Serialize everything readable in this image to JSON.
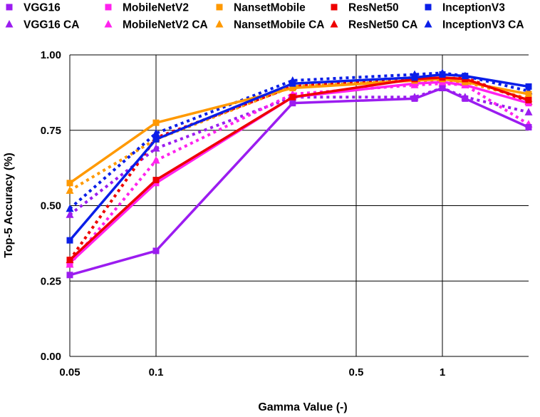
{
  "chart_data": {
    "type": "line",
    "xscale": "log",
    "xlabel": "Gamma Value (-)",
    "ylabel": "Top-5 Accuracy  (%)",
    "ylim": [
      0,
      1
    ],
    "xlim": [
      0.05,
      2
    ],
    "legend_position": "top",
    "grid": true,
    "x": [
      0.05,
      0.1,
      0.3,
      0.8,
      1.0,
      1.2,
      2.0
    ],
    "xticks": [
      {
        "value": 0.05,
        "label": "0.05"
      },
      {
        "value": 0.1,
        "label": "0.1"
      },
      {
        "value": 0.5,
        "label": "0.5"
      },
      {
        "value": 1,
        "label": "1"
      }
    ],
    "yticks": [
      {
        "value": 0,
        "label": "0.00"
      },
      {
        "value": 0.25,
        "label": "0.25"
      },
      {
        "value": 0.5,
        "label": "0.50"
      },
      {
        "value": 0.75,
        "label": "0.75"
      },
      {
        "value": 1,
        "label": "1.00"
      }
    ],
    "series": [
      {
        "name": "VGG16",
        "color": "#9b1cf0",
        "marker": "square",
        "dashed": false,
        "values": [
          0.27,
          0.35,
          0.84,
          0.855,
          0.89,
          0.855,
          0.76
        ]
      },
      {
        "name": "MobileNetV2",
        "color": "#ff22ee",
        "marker": "square",
        "dashed": false,
        "values": [
          0.31,
          0.575,
          0.86,
          0.905,
          0.91,
          0.9,
          0.84
        ]
      },
      {
        "name": "NansetMobile",
        "color": "#ff9900",
        "marker": "square",
        "dashed": false,
        "values": [
          0.575,
          0.775,
          0.89,
          0.915,
          0.92,
          0.91,
          0.87
        ]
      },
      {
        "name": "ResNet50",
        "color": "#ee0000",
        "marker": "square",
        "dashed": false,
        "values": [
          0.32,
          0.585,
          0.86,
          0.92,
          0.925,
          0.92,
          0.85
        ]
      },
      {
        "name": "InceptionV3",
        "color": "#0a1ee8",
        "marker": "square",
        "dashed": false,
        "values": [
          0.385,
          0.72,
          0.905,
          0.925,
          0.935,
          0.93,
          0.895
        ]
      },
      {
        "name": "VGG16 CA",
        "color": "#9b1cf0",
        "marker": "triangle",
        "dashed": true,
        "values": [
          0.47,
          0.69,
          0.86,
          0.86,
          0.89,
          0.86,
          0.81
        ]
      },
      {
        "name": "MobileNetV2 CA",
        "color": "#ff22ee",
        "marker": "triangle",
        "dashed": true,
        "values": [
          0.305,
          0.65,
          0.87,
          0.9,
          0.905,
          0.9,
          0.77
        ]
      },
      {
        "name": "NansetMobile CA",
        "color": "#ff9900",
        "marker": "triangle",
        "dashed": true,
        "values": [
          0.55,
          0.72,
          0.895,
          0.915,
          0.91,
          0.91,
          0.855
        ]
      },
      {
        "name": "ResNet50 CA",
        "color": "#ee0000",
        "marker": "triangle",
        "dashed": true,
        "values": [
          0.32,
          0.725,
          0.895,
          0.925,
          0.92,
          0.925,
          0.845
        ]
      },
      {
        "name": "InceptionV3 CA",
        "color": "#0a1ee8",
        "marker": "triangle",
        "dashed": true,
        "values": [
          0.49,
          0.74,
          0.915,
          0.935,
          0.94,
          0.93,
          0.88
        ]
      }
    ]
  }
}
